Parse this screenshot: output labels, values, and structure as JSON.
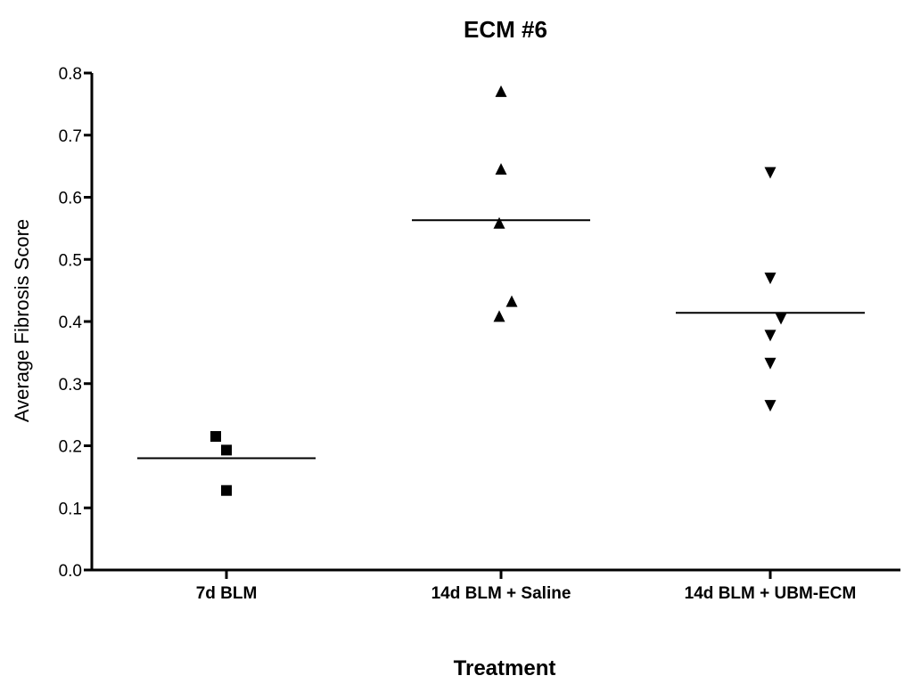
{
  "chart_data": {
    "type": "scatter",
    "title": "ECM #6",
    "xlabel": "Treatment",
    "ylabel": "Average Fibrosis Score",
    "ylim": [
      0,
      0.8
    ],
    "yticks": [
      "0.0",
      "0.1",
      "0.2",
      "0.3",
      "0.4",
      "0.5",
      "0.6",
      "0.7",
      "0.8"
    ],
    "categories": [
      "7d BLM",
      "14d BLM + Saline",
      "14d BLM + UBM-ECM"
    ],
    "grid": false,
    "series": [
      {
        "category": "7d BLM",
        "marker": "square",
        "points": [
          {
            "offset": -0.3,
            "y": 0.215
          },
          {
            "offset": 0.0,
            "y": 0.193
          },
          {
            "offset": 0.0,
            "y": 0.128
          }
        ],
        "mean": 0.18
      },
      {
        "category": "14d BLM + Saline",
        "marker": "triangle-up",
        "points": [
          {
            "offset": 0.0,
            "y": 0.77
          },
          {
            "offset": 0.0,
            "y": 0.645
          },
          {
            "offset": -0.05,
            "y": 0.558
          },
          {
            "offset": -0.05,
            "y": 0.408
          },
          {
            "offset": 0.3,
            "y": 0.432
          }
        ],
        "mean": 0.563
      },
      {
        "category": "14d BLM + UBM-ECM",
        "marker": "triangle-down",
        "points": [
          {
            "offset": 0.0,
            "y": 0.64
          },
          {
            "offset": 0.0,
            "y": 0.47
          },
          {
            "offset": 0.3,
            "y": 0.405
          },
          {
            "offset": 0.0,
            "y": 0.378
          },
          {
            "offset": 0.0,
            "y": 0.333
          },
          {
            "offset": 0.0,
            "y": 0.265
          }
        ],
        "mean": 0.414
      }
    ]
  }
}
